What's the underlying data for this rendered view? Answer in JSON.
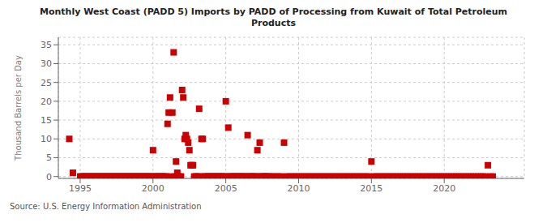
{
  "chart_data": {
    "type": "scatter",
    "title": "Monthly West Coast (PADD 5) Imports by PADD of Processing from Kuwait of Total Petroleum\nProducts",
    "y_label": "Thousand Barrels per Day",
    "annotation": "Source: U.S. Energy Information Administration",
    "color": "#cc0000",
    "marker": "square",
    "grid": true,
    "xlim": [
      1993.5,
      2025.5
    ],
    "ylim": [
      -0.5,
      37
    ],
    "xticks": [
      1995,
      2000,
      2005,
      2010,
      2015,
      2020
    ],
    "yticks": [
      0,
      5,
      10,
      15,
      20,
      25,
      30,
      35
    ],
    "x": [
      1994.25,
      1994.5,
      1995.0,
      1995.08,
      1995.17,
      1995.25,
      1995.33,
      1995.42,
      1995.5,
      1995.58,
      1995.67,
      1995.75,
      1995.83,
      1995.92,
      1996.0,
      1996.08,
      1996.17,
      1996.25,
      1996.33,
      1996.42,
      1996.5,
      1996.58,
      1996.67,
      1996.75,
      1996.83,
      1996.92,
      1997.0,
      1997.08,
      1997.17,
      1997.25,
      1997.33,
      1997.42,
      1997.5,
      1997.58,
      1997.67,
      1997.75,
      1997.83,
      1997.92,
      1998.0,
      1998.08,
      1998.17,
      1998.25,
      1998.33,
      1998.42,
      1998.5,
      1998.58,
      1998.67,
      1998.75,
      1998.83,
      1998.92,
      1999.0,
      1999.08,
      1999.17,
      1999.25,
      1999.33,
      1999.42,
      1999.5,
      1999.58,
      1999.67,
      1999.75,
      1999.83,
      1999.92,
      2000.0,
      2000.08,
      2000.17,
      2000.25,
      2000.33,
      2000.42,
      2000.5,
      2000.58,
      2000.67,
      2000.75,
      2000.83,
      2000.92,
      2001.0,
      2001.08,
      2001.17,
      2001.25,
      2001.33,
      2001.42,
      2001.5,
      2001.58,
      2001.67,
      2001.75,
      2001.83,
      2001.92,
      2002.0,
      2002.08,
      2002.17,
      2002.25,
      2002.33,
      2002.42,
      2002.5,
      2002.58,
      2002.67,
      2002.75,
      2002.83,
      2002.92,
      2003.0,
      2003.08,
      2003.17,
      2003.25,
      2003.33,
      2003.42,
      2003.5,
      2003.58,
      2003.67,
      2003.75,
      2003.83,
      2003.92,
      2004.0,
      2004.08,
      2004.17,
      2004.25,
      2004.33,
      2004.42,
      2004.5,
      2004.58,
      2004.67,
      2004.75,
      2004.83,
      2004.92,
      2005.0,
      2005.08,
      2005.17,
      2005.25,
      2005.33,
      2005.42,
      2005.5,
      2005.58,
      2005.67,
      2005.75,
      2005.83,
      2005.92,
      2006.0,
      2006.08,
      2006.17,
      2006.25,
      2006.33,
      2006.42,
      2006.5,
      2006.58,
      2006.67,
      2006.75,
      2006.83,
      2006.92,
      2007.0,
      2007.08,
      2007.17,
      2007.25,
      2007.33,
      2007.42,
      2007.5,
      2007.58,
      2007.67,
      2007.75,
      2007.83,
      2007.92,
      2008.0,
      2008.17,
      2008.33,
      2008.5,
      2008.67,
      2008.83,
      2009.0,
      2009.17,
      2009.33,
      2009.5,
      2009.67,
      2009.83,
      2010.0,
      2010.17,
      2010.33,
      2010.5,
      2010.67,
      2010.83,
      2011.0,
      2011.17,
      2011.33,
      2011.5,
      2011.67,
      2011.83,
      2012.0,
      2012.17,
      2012.33,
      2012.5,
      2012.67,
      2012.83,
      2013.0,
      2013.17,
      2013.33,
      2013.5,
      2013.67,
      2013.83,
      2014.0,
      2014.17,
      2014.33,
      2014.5,
      2014.67,
      2014.83,
      2015.0,
      2015.17,
      2015.33,
      2015.5,
      2015.67,
      2015.83,
      2016.0,
      2016.17,
      2016.33,
      2016.5,
      2016.67,
      2016.83,
      2017.0,
      2017.17,
      2017.33,
      2017.5,
      2017.67,
      2017.83,
      2018.0,
      2018.17,
      2018.33,
      2018.5,
      2018.67,
      2018.83,
      2019.0,
      2019.17,
      2019.33,
      2019.5,
      2019.67,
      2019.83,
      2020.0,
      2020.17,
      2020.33,
      2020.5,
      2020.67,
      2020.83,
      2021.0,
      2021.17,
      2021.33,
      2021.5,
      2021.67,
      2021.83,
      2022.0,
      2022.17,
      2022.33,
      2022.5,
      2022.67,
      2022.83,
      2023.0,
      2023.17,
      2023.33
    ],
    "values": [
      10.0,
      1.0,
      0.0,
      0.0,
      0.0,
      0.0,
      0.0,
      0.0,
      0.0,
      0.0,
      0.0,
      0.0,
      0.0,
      0.0,
      0.0,
      0.0,
      0.0,
      0.0,
      0.0,
      0.0,
      0.0,
      0.0,
      0.0,
      0.0,
      0.0,
      0.0,
      0.0,
      0.0,
      0.0,
      0.0,
      0.0,
      0.0,
      0.0,
      0.0,
      0.0,
      0.0,
      0.0,
      0.0,
      0.0,
      0.0,
      0.0,
      0.0,
      0.0,
      0.0,
      0.0,
      0.0,
      0.0,
      0.0,
      0.0,
      0.0,
      0.0,
      0.0,
      0.0,
      0.0,
      0.0,
      0.0,
      0.0,
      0.0,
      0.0,
      0.0,
      0.0,
      0.0,
      7.0,
      0.0,
      0.0,
      0.0,
      0.0,
      0.0,
      0.0,
      0.0,
      0.0,
      0.0,
      0.0,
      0.0,
      14.0,
      17.0,
      21.0,
      0.0,
      17.0,
      33.0,
      0.0,
      4.0,
      1.0,
      0.0,
      0.0,
      0.0,
      23.0,
      21.0,
      10.0,
      11.0,
      10.0,
      9.0,
      7.0,
      3.0,
      3.0,
      3.0,
      0.0,
      0.0,
      0.0,
      0.0,
      18.0,
      0.0,
      10.0,
      10.0,
      0.0,
      0.0,
      0.0,
      0.0,
      0.0,
      0.0,
      0.0,
      0.0,
      0.0,
      0.0,
      0.0,
      0.0,
      0.0,
      0.0,
      0.0,
      0.0,
      0.0,
      0.0,
      20.0,
      0.0,
      13.0,
      0.0,
      0.0,
      0.0,
      0.0,
      0.0,
      0.0,
      0.0,
      0.0,
      0.0,
      0.0,
      0.0,
      0.0,
      0.0,
      0.0,
      0.0,
      11.0,
      0.0,
      0.0,
      0.0,
      0.0,
      0.0,
      0.0,
      0.0,
      7.0,
      0.0,
      9.0,
      0.0,
      0.0,
      0.0,
      0.0,
      0.0,
      0.0,
      0.0,
      0.0,
      0.0,
      0.0,
      0.0,
      0.0,
      0.0,
      9.0,
      0.0,
      0.0,
      0.0,
      0.0,
      0.0,
      0.0,
      0.0,
      0.0,
      0.0,
      0.0,
      0.0,
      0.0,
      0.0,
      0.0,
      0.0,
      0.0,
      0.0,
      0.0,
      0.0,
      0.0,
      0.0,
      0.0,
      0.0,
      0.0,
      0.0,
      0.0,
      0.0,
      0.0,
      0.0,
      0.0,
      0.0,
      0.0,
      0.0,
      0.0,
      0.0,
      4.0,
      0.0,
      0.0,
      0.0,
      0.0,
      0.0,
      0.0,
      0.0,
      0.0,
      0.0,
      0.0,
      0.0,
      0.0,
      0.0,
      0.0,
      0.0,
      0.0,
      0.0,
      0.0,
      0.0,
      0.0,
      0.0,
      0.0,
      0.0,
      0.0,
      0.0,
      0.0,
      0.0,
      0.0,
      0.0,
      0.0,
      0.0,
      0.0,
      0.0,
      0.0,
      0.0,
      0.0,
      0.0,
      0.0,
      0.0,
      0.0,
      0.0,
      0.0,
      0.0,
      0.0,
      0.0,
      0.0,
      0.0,
      3.0,
      0.0,
      0.0
    ]
  }
}
